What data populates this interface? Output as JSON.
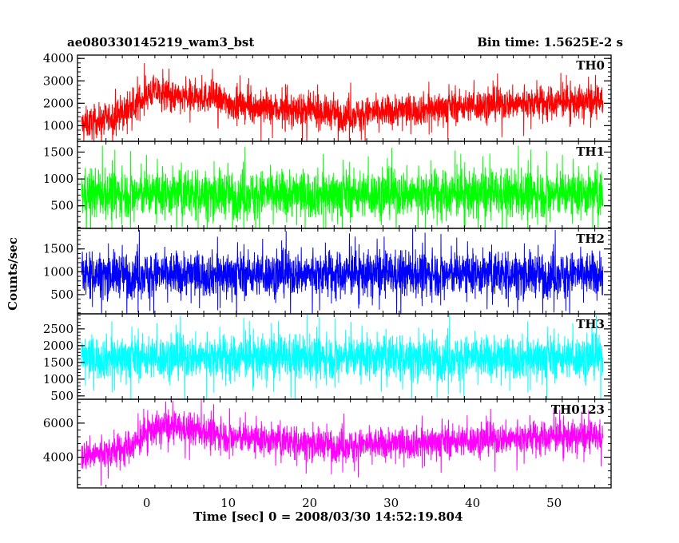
{
  "header": {
    "observation_id": "ae080330145219_wam3_bst",
    "bin_time": "Bin time: 1.5625E-2 s"
  },
  "chart_data": {
    "type": "line",
    "xlabel": "Time [sec] 0 = 2008/03/30 14:52:19.804",
    "ylabel": "Counts/sec",
    "xlim": [
      -8.5,
      57
    ],
    "xticks": [
      0,
      10,
      20,
      30,
      40,
      50
    ],
    "panels": [
      {
        "name": "TH0",
        "color": "#ff0000",
        "ylim": [
          300,
          4150
        ],
        "yticks": [
          1000,
          2000,
          3000,
          4000
        ],
        "baseline": [
          [
            -8,
            1050
          ],
          [
            -6,
            1200
          ],
          [
            -4,
            1400
          ],
          [
            -2,
            1700
          ],
          [
            0,
            2400
          ],
          [
            1,
            2550
          ],
          [
            4,
            2200
          ],
          [
            8,
            2300
          ],
          [
            10,
            2000
          ],
          [
            15,
            1750
          ],
          [
            20,
            1650
          ],
          [
            25,
            1500
          ],
          [
            30,
            1650
          ],
          [
            40,
            1900
          ],
          [
            50,
            2050
          ],
          [
            56,
            2050
          ]
        ],
        "noise": 500
      },
      {
        "name": "TH1",
        "color": "#00ff00",
        "ylim": [
          80,
          1700
        ],
        "yticks": [
          500,
          1000,
          1500
        ],
        "baseline": [
          [
            -8,
            720
          ],
          [
            56,
            720
          ]
        ],
        "noise": 310
      },
      {
        "name": "TH2",
        "color": "#0000ff",
        "ylim": [
          80,
          1950
        ],
        "yticks": [
          500,
          1000,
          1500
        ],
        "baseline": [
          [
            -8,
            950
          ],
          [
            56,
            950
          ]
        ],
        "noise": 340
      },
      {
        "name": "TH3",
        "color": "#00ffff",
        "ylim": [
          400,
          2950
        ],
        "yticks": [
          500,
          1000,
          1500,
          2000,
          2500
        ],
        "baseline": [
          [
            -8,
            1650
          ],
          [
            56,
            1650
          ]
        ],
        "noise": 450
      },
      {
        "name": "TH0123",
        "color": "#ff00ff",
        "ylim": [
          2200,
          7400
        ],
        "yticks": [
          4000,
          6000
        ],
        "baseline": [
          [
            -8,
            4100
          ],
          [
            -4,
            4300
          ],
          [
            -1,
            4900
          ],
          [
            0,
            5500
          ],
          [
            2,
            5800
          ],
          [
            6,
            5600
          ],
          [
            10,
            5200
          ],
          [
            20,
            4800
          ],
          [
            25,
            4700
          ],
          [
            30,
            4800
          ],
          [
            40,
            5000
          ],
          [
            50,
            5200
          ],
          [
            56,
            5200
          ]
        ],
        "noise": 650
      }
    ]
  }
}
